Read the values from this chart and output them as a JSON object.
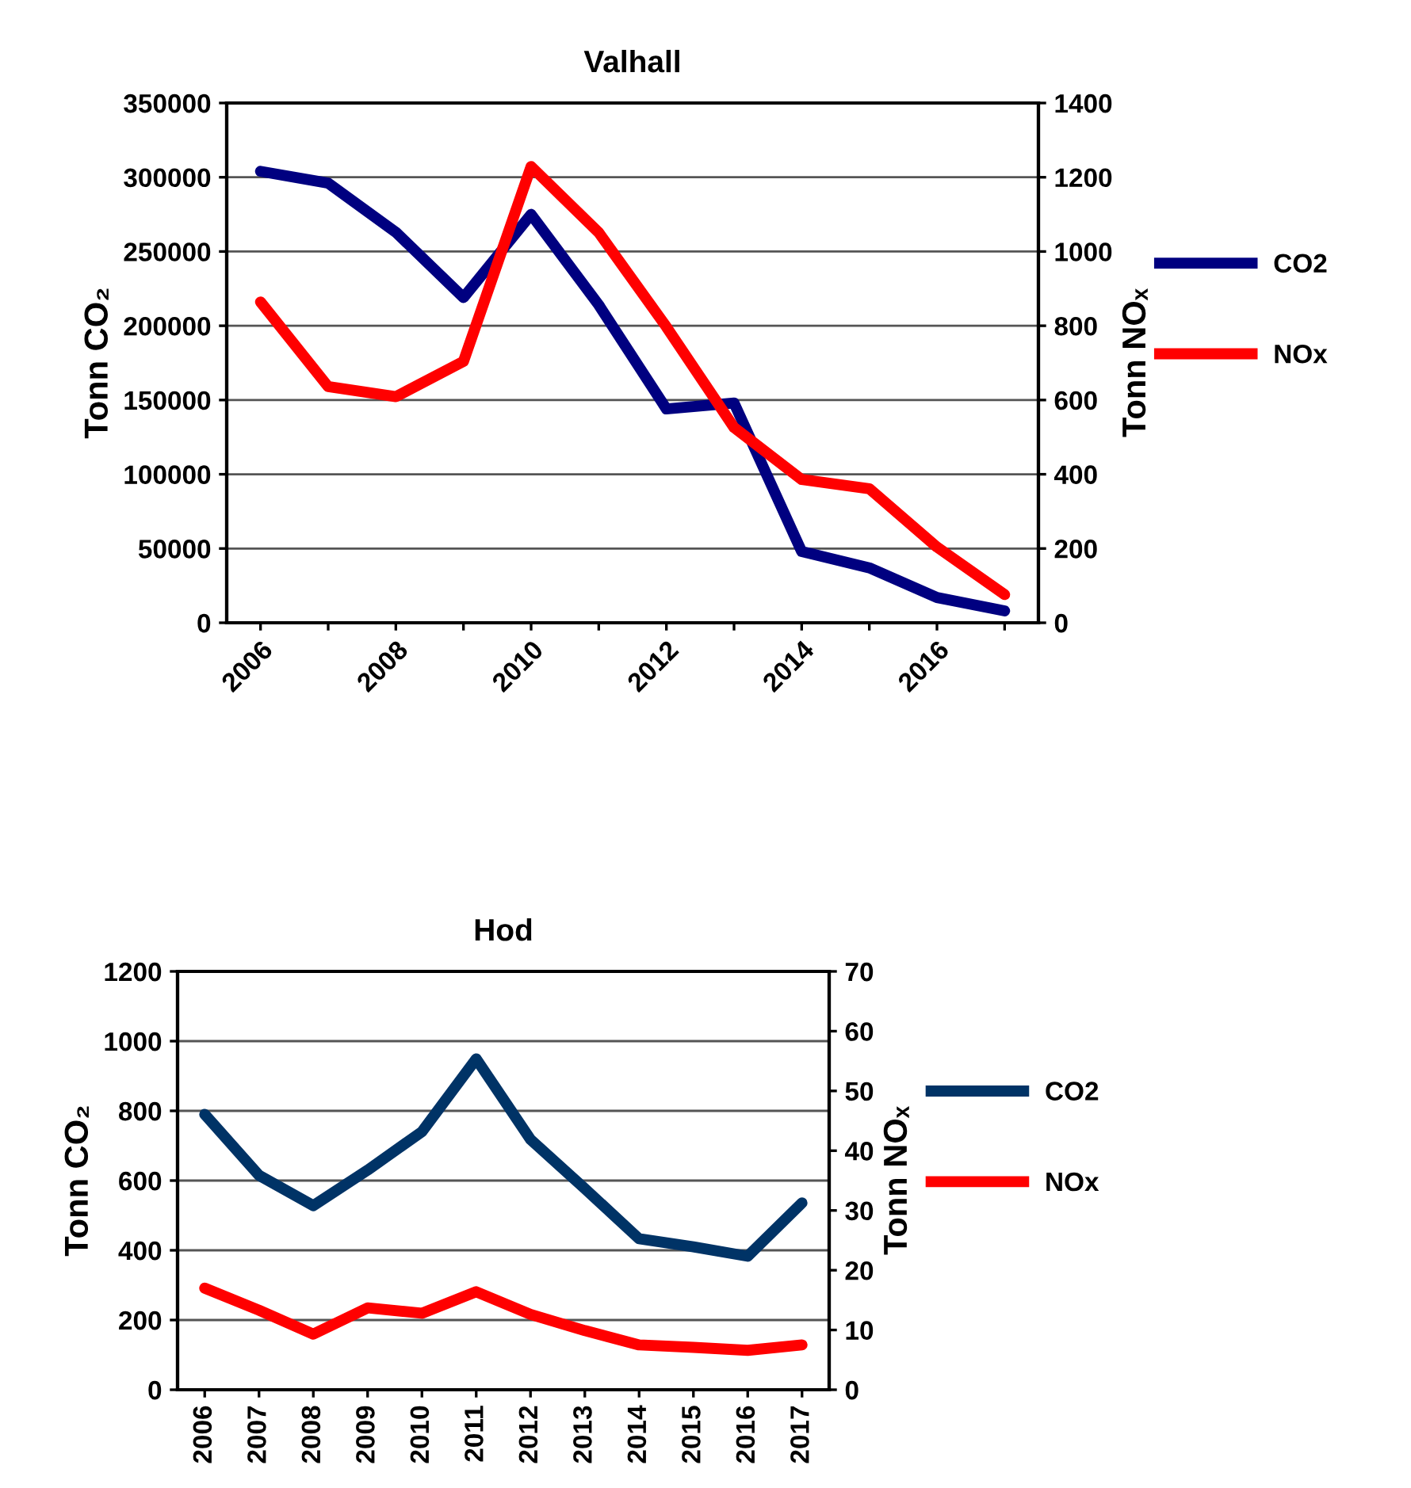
{
  "chart_data": [
    {
      "type": "line",
      "title": "Valhall",
      "ylabel": "Tonn CO₂",
      "y2label": "Tonn NOₓ",
      "categories": [
        "2006",
        null,
        "2008",
        null,
        "2010",
        null,
        "2012",
        null,
        "2014",
        null,
        "2016",
        null
      ],
      "series": [
        {
          "name": "CO2",
          "color": "#000080",
          "values": [
            304000,
            296000,
            263000,
            219000,
            275000,
            214000,
            144000,
            148000,
            48000,
            37000,
            17000,
            8000
          ]
        },
        {
          "name": "NOx",
          "color": "#ff0000",
          "axis": "y2",
          "values": [
            864,
            636,
            609,
            704,
            1229,
            1051,
            797,
            526,
            386,
            361,
            204,
            76
          ]
        }
      ],
      "ylim": [
        0,
        350000
      ],
      "yticks": [
        0,
        50000,
        100000,
        150000,
        200000,
        250000,
        300000,
        350000
      ],
      "y2lim": [
        0,
        1400
      ],
      "y2ticks": [
        0,
        200,
        400,
        600,
        800,
        1000,
        1200,
        1400
      ],
      "grid": "y",
      "legend": "right",
      "marker": "none",
      "line_style": "solid"
    },
    {
      "type": "line",
      "title": "Hod",
      "ylabel": "Tonn CO₂",
      "y2label": "Tonn NOₓ",
      "categories": [
        "2006",
        "2007",
        "2008",
        "2009",
        "2010",
        "2011",
        "2012",
        "2013",
        "2014",
        "2015",
        "2016",
        "2017"
      ],
      "series": [
        {
          "name": "CO2",
          "color": "#003366",
          "values": [
            790,
            615,
            528,
            630,
            740,
            949,
            718,
            577,
            433,
            410,
            383,
            536
          ]
        },
        {
          "name": "NOx",
          "color": "#ff0000",
          "axis": "y2",
          "values": [
            17.0,
            13.3,
            9.3,
            13.7,
            12.8,
            16.4,
            12.6,
            9.9,
            7.5,
            7.1,
            6.6,
            7.5
          ]
        }
      ],
      "ylim": [
        0,
        1200
      ],
      "yticks": [
        0,
        200,
        400,
        600,
        800,
        1000,
        1200
      ],
      "y2lim": [
        0,
        70
      ],
      "y2ticks": [
        0,
        10,
        20,
        30,
        40,
        50,
        60,
        70
      ],
      "grid": "y",
      "legend": "right",
      "marker": "none",
      "line_style": "solid"
    }
  ]
}
